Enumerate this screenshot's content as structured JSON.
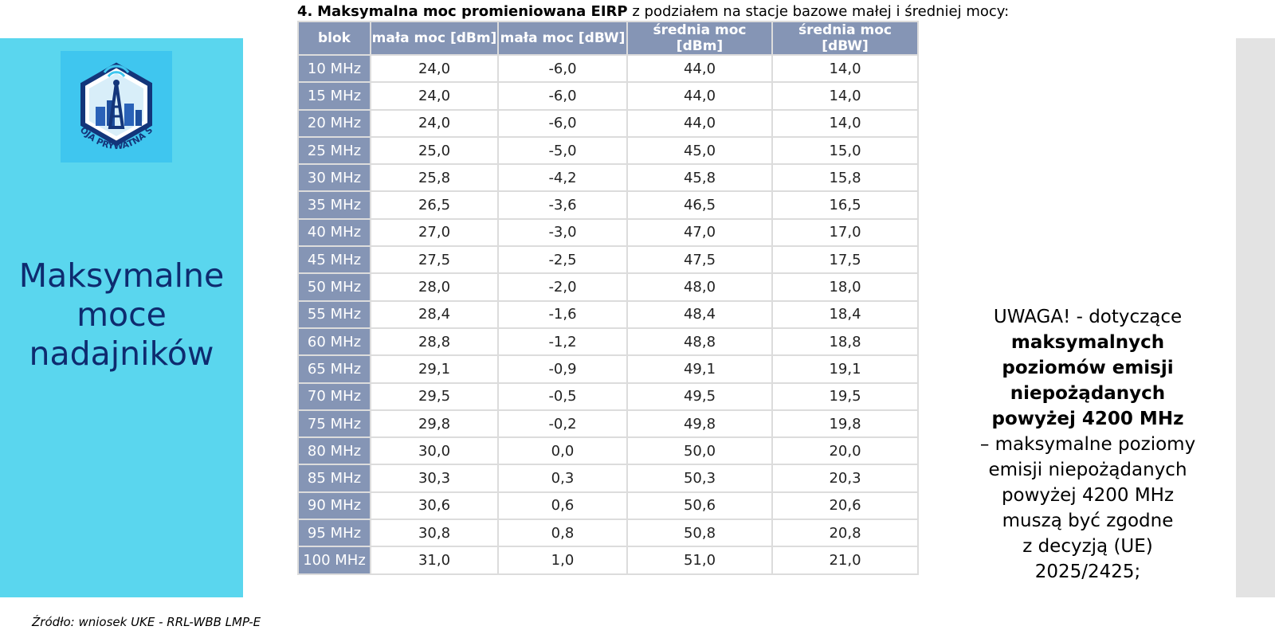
{
  "heading": {
    "number": "4.",
    "bold_part": "Maksymalna moc promieniowana EIRP",
    "rest": "z podziałem na stacje bazowe małej i średniej mocy:"
  },
  "left_panel": {
    "logo_text": "TWOJA PRYWATNA SIEĆ",
    "title_lines": [
      "Maksymalne",
      "moce",
      "nadajników"
    ],
    "bg_color": "#5ad6ee",
    "title_color": "#0e2b6f"
  },
  "table": {
    "header_color": "#8595b5",
    "columns": [
      "blok",
      "mała moc [dBm]",
      "mała moc [dBW]",
      "średnia moc [dBm]",
      "średnia moc [dBW]"
    ],
    "rows": [
      [
        "10 MHz",
        "24,0",
        "-6,0",
        "44,0",
        "14,0"
      ],
      [
        "15 MHz",
        "24,0",
        "-6,0",
        "44,0",
        "14,0"
      ],
      [
        "20 MHz",
        "24,0",
        "-6,0",
        "44,0",
        "14,0"
      ],
      [
        "25 MHz",
        "25,0",
        "-5,0",
        "45,0",
        "15,0"
      ],
      [
        "30 MHz",
        "25,8",
        "-4,2",
        "45,8",
        "15,8"
      ],
      [
        "35 MHz",
        "26,5",
        "-3,6",
        "46,5",
        "16,5"
      ],
      [
        "40 MHz",
        "27,0",
        "-3,0",
        "47,0",
        "17,0"
      ],
      [
        "45 MHz",
        "27,5",
        "-2,5",
        "47,5",
        "17,5"
      ],
      [
        "50 MHz",
        "28,0",
        "-2,0",
        "48,0",
        "18,0"
      ],
      [
        "55 MHz",
        "28,4",
        "-1,6",
        "48,4",
        "18,4"
      ],
      [
        "60 MHz",
        "28,8",
        "-1,2",
        "48,8",
        "18,8"
      ],
      [
        "65 MHz",
        "29,1",
        "-0,9",
        "49,1",
        "19,1"
      ],
      [
        "70 MHz",
        "29,5",
        "-0,5",
        "49,5",
        "19,5"
      ],
      [
        "75 MHz",
        "29,8",
        "-0,2",
        "49,8",
        "19,8"
      ],
      [
        "80 MHz",
        "30,0",
        "0,0",
        "50,0",
        "20,0"
      ],
      [
        "85 MHz",
        "30,3",
        "0,3",
        "50,3",
        "20,3"
      ],
      [
        "90 MHz",
        "30,6",
        "0,6",
        "50,6",
        "20,6"
      ],
      [
        "95 MHz",
        "30,8",
        "0,8",
        "50,8",
        "20,8"
      ],
      [
        "100 MHz",
        "31,0",
        "1,0",
        "51,0",
        "21,0"
      ]
    ]
  },
  "note": {
    "intro": "UWAGA! - dotyczące",
    "bold_lines": [
      "maksymalnych",
      "poziomów emisji",
      "niepożądanych",
      "powyżej 4200 MHz"
    ],
    "rest_lines": [
      "– maksymalne poziomy",
      "emisji niepożądanych",
      "powyżej 4200 MHz",
      "muszą być zgodne",
      "z decyzją (UE)",
      "2025/2425;"
    ]
  },
  "source": "Źródło: wniosek UKE - RRL-WBB LMP-E"
}
